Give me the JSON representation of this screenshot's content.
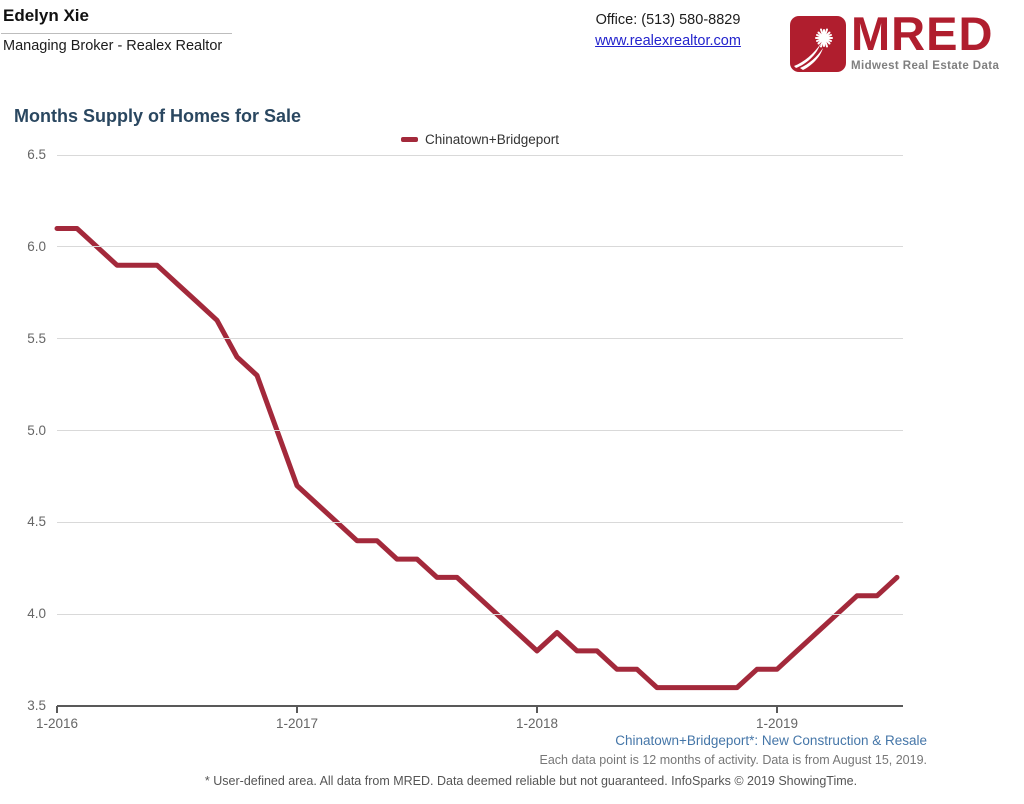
{
  "header": {
    "agent_name": "Edelyn Xie",
    "agent_title": "Managing Broker - Realex Realtor",
    "office_phone": "Office: (513) 580-8829",
    "website": "www.realexrealtor.com",
    "logo": {
      "text": "MRED",
      "tagline": "Midwest Real Estate Data",
      "icon": "starburst-swoosh-icon",
      "brand_color": "#b01e2e",
      "tagline_color": "#7f7f7f"
    }
  },
  "chart": {
    "title": "Months Supply of Homes for Sale",
    "title_color": "#2a4760",
    "legend": {
      "label": "Chinatown+Bridgeport",
      "color": "#a3293b"
    }
  },
  "chart_data": {
    "type": "line",
    "title": "Months Supply of Homes for Sale",
    "grid": "horizontal",
    "legend_position": "top-center",
    "ylim": [
      3.5,
      6.5
    ],
    "y_ticks": [
      6.5,
      6.0,
      5.5,
      5.0,
      4.5,
      4.0,
      3.5
    ],
    "x_tick_labels": [
      "1-2016",
      "1-2017",
      "1-2018",
      "1-2019"
    ],
    "x_tick_month_indices": [
      0,
      12,
      24,
      36
    ],
    "x": [
      "1-2016",
      "2-2016",
      "3-2016",
      "4-2016",
      "5-2016",
      "6-2016",
      "7-2016",
      "8-2016",
      "9-2016",
      "10-2016",
      "11-2016",
      "12-2016",
      "1-2017",
      "2-2017",
      "3-2017",
      "4-2017",
      "5-2017",
      "6-2017",
      "7-2017",
      "8-2017",
      "9-2017",
      "10-2017",
      "11-2017",
      "12-2017",
      "1-2018",
      "2-2018",
      "3-2018",
      "4-2018",
      "5-2018",
      "6-2018",
      "7-2018",
      "8-2018",
      "9-2018",
      "10-2018",
      "11-2018",
      "12-2018",
      "1-2019",
      "2-2019",
      "3-2019",
      "4-2019",
      "5-2019",
      "6-2019",
      "7-2019"
    ],
    "series": [
      {
        "name": "Chinatown+Bridgeport",
        "color": "#a3293b",
        "values": [
          6.1,
          6.1,
          6.0,
          5.9,
          5.9,
          5.9,
          5.8,
          5.7,
          5.6,
          5.4,
          5.3,
          5.0,
          4.7,
          4.6,
          4.5,
          4.4,
          4.4,
          4.3,
          4.3,
          4.2,
          4.2,
          4.1,
          4.0,
          3.9,
          3.8,
          3.9,
          3.8,
          3.8,
          3.7,
          3.7,
          3.6,
          3.6,
          3.6,
          3.6,
          3.6,
          3.7,
          3.7,
          3.8,
          3.9,
          4.0,
          4.1,
          4.1,
          4.2
        ]
      }
    ]
  },
  "annotations": {
    "series_note": "Chinatown+Bridgeport*: New Construction & Resale",
    "data_note": "Each data point is 12 months of activity. Data is from August 15, 2019.",
    "disclaimer": "* User-defined area. All data from MRED. Data deemed reliable but not guaranteed. InfoSparks © 2019 ShowingTime."
  }
}
